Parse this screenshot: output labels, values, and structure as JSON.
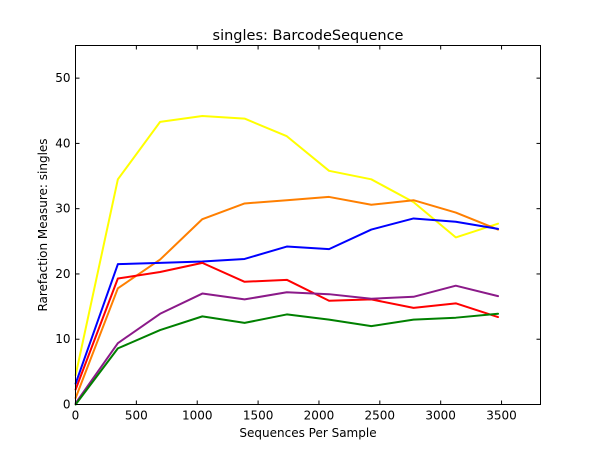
{
  "chart_data": {
    "type": "line",
    "title": "singles: BarcodeSequence",
    "xlabel": "Sequences Per Sample",
    "ylabel": "Rarefaction Measure: singles",
    "xlim": [
      0,
      3820
    ],
    "ylim": [
      0,
      55
    ],
    "xticks": [
      0,
      500,
      1000,
      1500,
      2000,
      2500,
      3000,
      3500
    ],
    "yticks": [
      0,
      10,
      20,
      30,
      40,
      50
    ],
    "grid": false,
    "x": [
      1,
      348,
      695,
      1042,
      1389,
      1736,
      2083,
      2430,
      2777,
      3124,
      3471
    ],
    "series": [
      {
        "color": "#ffff00",
        "values": [
          4.5,
          34.5,
          43.3,
          44.2,
          43.8,
          41.1,
          35.8,
          34.5,
          31.0,
          25.6,
          27.7
        ]
      },
      {
        "color": "#ff7f00",
        "values": [
          1.0,
          17.8,
          22.2,
          28.4,
          30.8,
          31.3,
          31.8,
          30.6,
          31.3,
          29.4,
          26.8
        ]
      },
      {
        "color": "#0000ff",
        "values": [
          3.2,
          21.5,
          21.7,
          21.9,
          22.3,
          24.2,
          23.8,
          26.8,
          28.5,
          28.0,
          26.9
        ]
      },
      {
        "color": "#ff0000",
        "values": [
          2.3,
          19.3,
          20.3,
          21.7,
          18.8,
          19.1,
          15.9,
          16.1,
          14.8,
          15.5,
          13.4
        ]
      },
      {
        "color": "#8b1a89",
        "values": [
          0.2,
          9.4,
          13.9,
          17.0,
          16.1,
          17.2,
          16.9,
          16.2,
          16.5,
          18.2,
          16.6
        ]
      },
      {
        "color": "#008000",
        "values": [
          0.0,
          8.6,
          11.4,
          13.5,
          12.5,
          13.8,
          13.0,
          12.0,
          13.0,
          13.3,
          13.9
        ]
      }
    ]
  }
}
